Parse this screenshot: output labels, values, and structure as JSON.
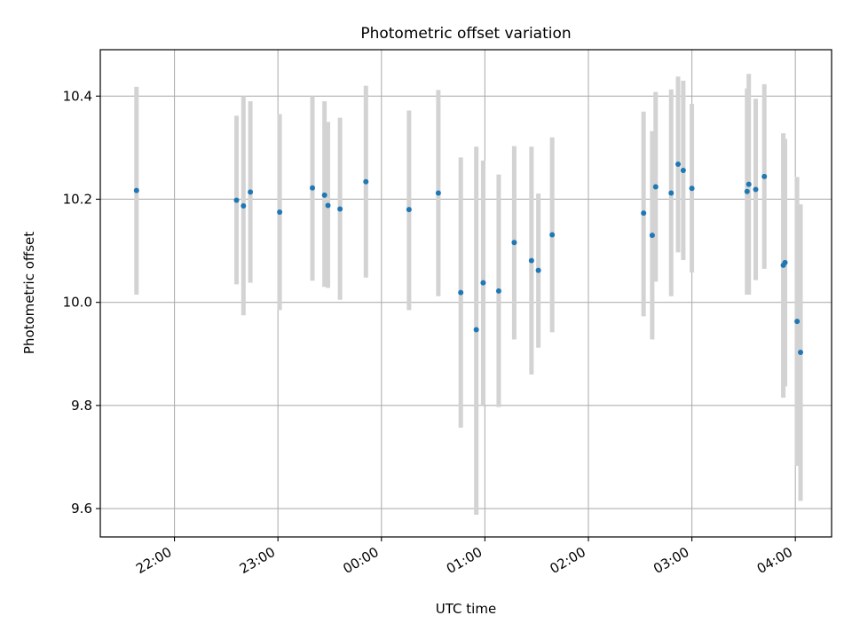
{
  "chart_data": {
    "type": "scatter",
    "title": "Photometric offset variation",
    "xlabel": "UTC time",
    "ylabel": "Photometric offset",
    "x_unit": "UTC time (HH:MM)",
    "xlim": [
      "21:17",
      "04:21"
    ],
    "ylim": [
      9.545,
      10.49
    ],
    "grid": true,
    "x_ticks": [
      "22:00",
      "23:00",
      "00:00",
      "01:00",
      "02:00",
      "03:00",
      "04:00"
    ],
    "y_ticks": [
      9.6,
      9.8,
      10.0,
      10.2,
      10.4
    ],
    "points": [
      {
        "x": "21:38",
        "y": 10.217,
        "ylo": 10.015,
        "yhi": 10.418
      },
      {
        "x": "22:36",
        "y": 10.198,
        "ylo": 10.035,
        "yhi": 10.362
      },
      {
        "x": "22:40",
        "y": 10.187,
        "ylo": 9.975,
        "yhi": 10.4
      },
      {
        "x": "22:44",
        "y": 10.214,
        "ylo": 10.038,
        "yhi": 10.39
      },
      {
        "x": "23:01",
        "y": 10.175,
        "ylo": 9.985,
        "yhi": 10.365
      },
      {
        "x": "23:20",
        "y": 10.222,
        "ylo": 10.042,
        "yhi": 10.4
      },
      {
        "x": "23:27",
        "y": 10.208,
        "ylo": 10.03,
        "yhi": 10.39
      },
      {
        "x": "23:29",
        "y": 10.188,
        "ylo": 10.028,
        "yhi": 10.35
      },
      {
        "x": "23:36",
        "y": 10.181,
        "ylo": 10.005,
        "yhi": 10.358
      },
      {
        "x": "23:51",
        "y": 10.234,
        "ylo": 10.048,
        "yhi": 10.42
      },
      {
        "x": "00:16",
        "y": 10.18,
        "ylo": 9.985,
        "yhi": 10.372
      },
      {
        "x": "00:33",
        "y": 10.212,
        "ylo": 10.012,
        "yhi": 10.412
      },
      {
        "x": "00:46",
        "y": 10.019,
        "ylo": 9.757,
        "yhi": 10.281
      },
      {
        "x": "00:55",
        "y": 9.947,
        "ylo": 9.588,
        "yhi": 10.302
      },
      {
        "x": "00:59",
        "y": 10.038,
        "ylo": 9.8,
        "yhi": 10.275
      },
      {
        "x": "01:08",
        "y": 10.022,
        "ylo": 9.797,
        "yhi": 10.248
      },
      {
        "x": "01:17",
        "y": 10.116,
        "ylo": 9.928,
        "yhi": 10.303
      },
      {
        "x": "01:27",
        "y": 10.081,
        "ylo": 9.86,
        "yhi": 10.302
      },
      {
        "x": "01:31",
        "y": 10.062,
        "ylo": 9.912,
        "yhi": 10.211
      },
      {
        "x": "01:39",
        "y": 10.131,
        "ylo": 9.942,
        "yhi": 10.32
      },
      {
        "x": "02:32",
        "y": 10.173,
        "ylo": 9.973,
        "yhi": 10.37
      },
      {
        "x": "02:37",
        "y": 10.13,
        "ylo": 9.928,
        "yhi": 10.332
      },
      {
        "x": "02:39",
        "y": 10.224,
        "ylo": 10.04,
        "yhi": 10.408
      },
      {
        "x": "02:48",
        "y": 10.212,
        "ylo": 10.012,
        "yhi": 10.413
      },
      {
        "x": "02:52",
        "y": 10.268,
        "ylo": 10.097,
        "yhi": 10.438
      },
      {
        "x": "02:55",
        "y": 10.256,
        "ylo": 10.082,
        "yhi": 10.43
      },
      {
        "x": "03:00",
        "y": 10.221,
        "ylo": 10.058,
        "yhi": 10.385
      },
      {
        "x": "03:32",
        "y": 10.215,
        "ylo": 10.015,
        "yhi": 10.415
      },
      {
        "x": "03:33",
        "y": 10.229,
        "ylo": 10.015,
        "yhi": 10.443
      },
      {
        "x": "03:37",
        "y": 10.219,
        "ylo": 10.043,
        "yhi": 10.395
      },
      {
        "x": "03:42",
        "y": 10.244,
        "ylo": 10.065,
        "yhi": 10.423
      },
      {
        "x": "03:53",
        "y": 10.072,
        "ylo": 9.815,
        "yhi": 10.328
      },
      {
        "x": "03:54",
        "y": 10.077,
        "ylo": 9.837,
        "yhi": 10.317
      },
      {
        "x": "04:01",
        "y": 9.963,
        "ylo": 9.683,
        "yhi": 10.243
      },
      {
        "x": "04:03",
        "y": 9.903,
        "ylo": 9.615,
        "yhi": 10.19
      }
    ],
    "colors": {
      "point": "#1f77b4",
      "errorbar": "#d3d3d3",
      "grid": "#b0b0b0",
      "axes": "#000000"
    }
  }
}
